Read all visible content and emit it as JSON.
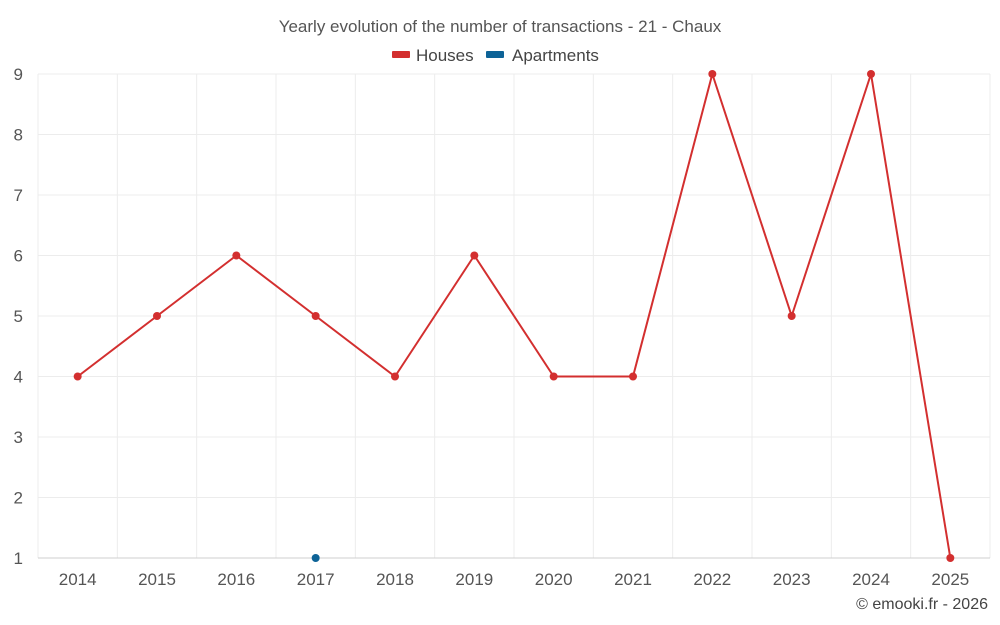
{
  "chart_data": {
    "type": "line",
    "title": "Yearly evolution of the number of transactions - 21 - Chaux",
    "categories": [
      "2014",
      "2015",
      "2016",
      "2017",
      "2018",
      "2019",
      "2020",
      "2021",
      "2022",
      "2023",
      "2024",
      "2025"
    ],
    "series": [
      {
        "name": "Houses",
        "color": "#d32f2f",
        "values": [
          4,
          5,
          6,
          5,
          4,
          6,
          4,
          4,
          9,
          5,
          9,
          1
        ]
      },
      {
        "name": "Apartments",
        "color": "#0d6397",
        "values": [
          null,
          null,
          null,
          1,
          null,
          null,
          null,
          null,
          null,
          null,
          null,
          null
        ]
      }
    ],
    "yticks": [
      "1",
      "2",
      "3",
      "4",
      "5",
      "6",
      "7",
      "8",
      "9"
    ],
    "ylim": [
      1,
      9
    ],
    "xlabel": "",
    "ylabel": "",
    "grid": true,
    "legend_position": "top-center"
  },
  "credit": "© emooki.fr - 2026"
}
